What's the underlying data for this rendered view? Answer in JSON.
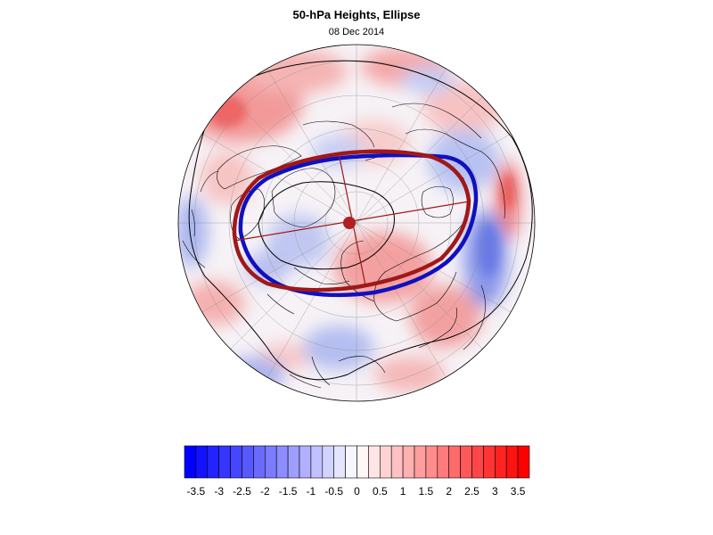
{
  "title": "50-hPa Heights, Ellipse",
  "subtitle": "08 Dec 2014",
  "colorbar": {
    "min": -3.75,
    "max": 3.75,
    "step": 0.25,
    "tick_labels": [
      "-3.5",
      "-3",
      "-2.5",
      "-2",
      "-1.5",
      "-1",
      "-0.5",
      "0",
      "0.5",
      "1",
      "1.5",
      "2",
      "2.5",
      "3",
      "3.5"
    ],
    "tick_values": [
      -3.5,
      -3,
      -2.5,
      -2,
      -1.5,
      -1,
      -0.5,
      0,
      0.5,
      1,
      1.5,
      2,
      2.5,
      3,
      3.5
    ],
    "negative_color": "#0000ff",
    "positive_color": "#ff0000",
    "neutral_color": "#ffffff"
  },
  "map": {
    "projection": "polar-stereographic-north",
    "colors": {
      "ellipse_blue": "#1010c0",
      "ellipse_red": "#a01818",
      "center_dot": "#b02020",
      "coastline": "#000000",
      "grid": "#888888",
      "contour": "#000000"
    }
  }
}
